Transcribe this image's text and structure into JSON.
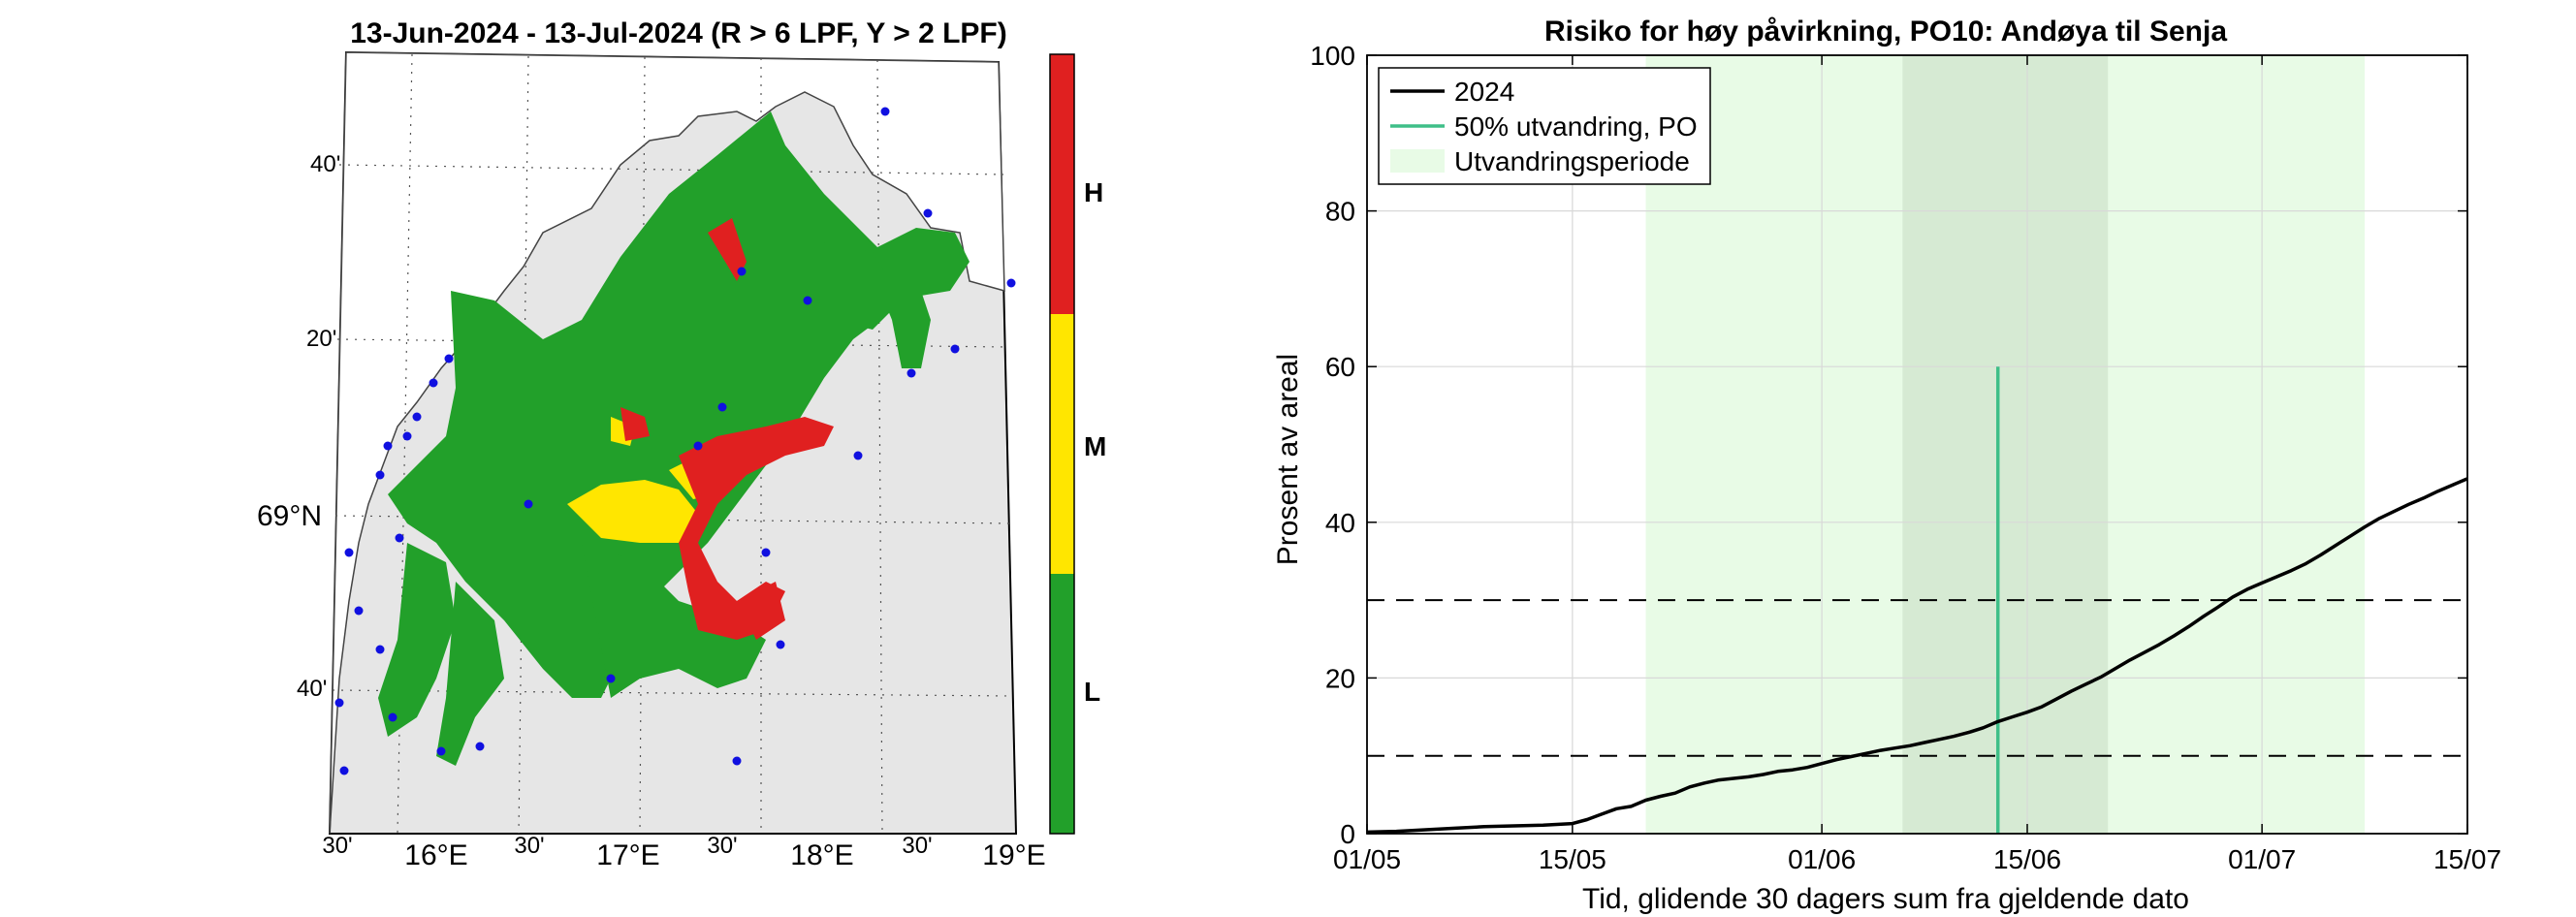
{
  "map_panel": {
    "title": "13-Jun-2024  - 13-Jul-2024  (R > 6 LPF, Y > 2 LPF)",
    "colorbar": {
      "labels": [
        "H",
        "M",
        "L"
      ],
      "colors": {
        "H": "#e02020",
        "M": "#ffe600",
        "L": "#22a02a"
      }
    },
    "lon_ticks": [
      "30'",
      "16°E",
      "30'",
      "17°E",
      "30'",
      "18°E",
      "30'",
      "19°E"
    ],
    "lat_ticks": [
      "40'",
      "20'",
      "69°N",
      "40'"
    ],
    "colors": {
      "land": "#e6e6e6",
      "sea": "#ffffff",
      "station": "#1010e0"
    }
  },
  "chart_data": {
    "type": "line",
    "title": "Risiko for høy påvirkning, PO10: Andøya til Senja",
    "xlabel": "Tid, glidende 30 dagers sum fra gjeldende dato",
    "ylabel": "Prosent av areal",
    "ylim": [
      0,
      100
    ],
    "xlim_days": [
      0,
      75
    ],
    "x_tick_labels": [
      "01/05",
      "15/05",
      "01/06",
      "15/06",
      "01/07",
      "15/07"
    ],
    "x_tick_days": [
      0,
      14,
      31,
      45,
      61,
      75
    ],
    "y_ticks": [
      0,
      20,
      40,
      60,
      80,
      100
    ],
    "grid": true,
    "legend_position": "top-left",
    "series": [
      {
        "name": "2024",
        "color": "#000000",
        "x_days": [
          0,
          2,
          4,
          6,
          8,
          10,
          12,
          14,
          15,
          16,
          17,
          18,
          19,
          20,
          21,
          22,
          23,
          24,
          25,
          26,
          27,
          28,
          29,
          30,
          31,
          32,
          33,
          34,
          35,
          36,
          37,
          38,
          39,
          40,
          41,
          42,
          43,
          44,
          45,
          46,
          47,
          48,
          49,
          50,
          51,
          52,
          53,
          54,
          55,
          56,
          57,
          58,
          59,
          60,
          61,
          62,
          63,
          64,
          65,
          66,
          67,
          68,
          69,
          70,
          71,
          72,
          73,
          74,
          75
        ],
        "values": [
          0.2,
          0.3,
          0.5,
          0.7,
          0.9,
          1.0,
          1.1,
          1.3,
          1.8,
          2.5,
          3.2,
          3.5,
          4.3,
          4.8,
          5.2,
          6.0,
          6.5,
          6.9,
          7.1,
          7.3,
          7.6,
          8.0,
          8.2,
          8.5,
          9.0,
          9.5,
          9.9,
          10.3,
          10.7,
          11.0,
          11.3,
          11.7,
          12.1,
          12.5,
          13.0,
          13.6,
          14.4,
          15.0,
          15.6,
          16.3,
          17.3,
          18.3,
          19.2,
          20.1,
          21.2,
          22.3,
          23.3,
          24.3,
          25.4,
          26.6,
          27.9,
          29.1,
          30.4,
          31.4,
          32.2,
          33.0,
          33.8,
          34.7,
          35.8,
          37.0,
          38.2,
          39.4,
          40.5,
          41.4,
          42.3,
          43.1,
          44.0,
          44.8,
          45.6
        ],
        "clip_at_day": 75
      }
    ],
    "reference_lines": [
      {
        "name": "50% utvandring, PO",
        "day": 43,
        "from": 0,
        "to": 60,
        "color": "#3fbf88"
      }
    ],
    "dashed_thresholds": [
      10,
      30
    ],
    "shaded_periods": [
      {
        "name": "Utvandringsperiode",
        "from_day": 19,
        "to_day": 68,
        "color": "#e8fbe6"
      },
      {
        "name": "core",
        "from_day": 36.5,
        "to_day": 50.5,
        "color": "#d6ead3"
      }
    ],
    "legend": [
      {
        "label": "2024",
        "kind": "line",
        "color": "#000000"
      },
      {
        "label": "50% utvandring, PO",
        "kind": "line",
        "color": "#3fbf88"
      },
      {
        "label": "Utvandringsperiode",
        "kind": "patch",
        "color": "#e8fbe6"
      }
    ]
  }
}
